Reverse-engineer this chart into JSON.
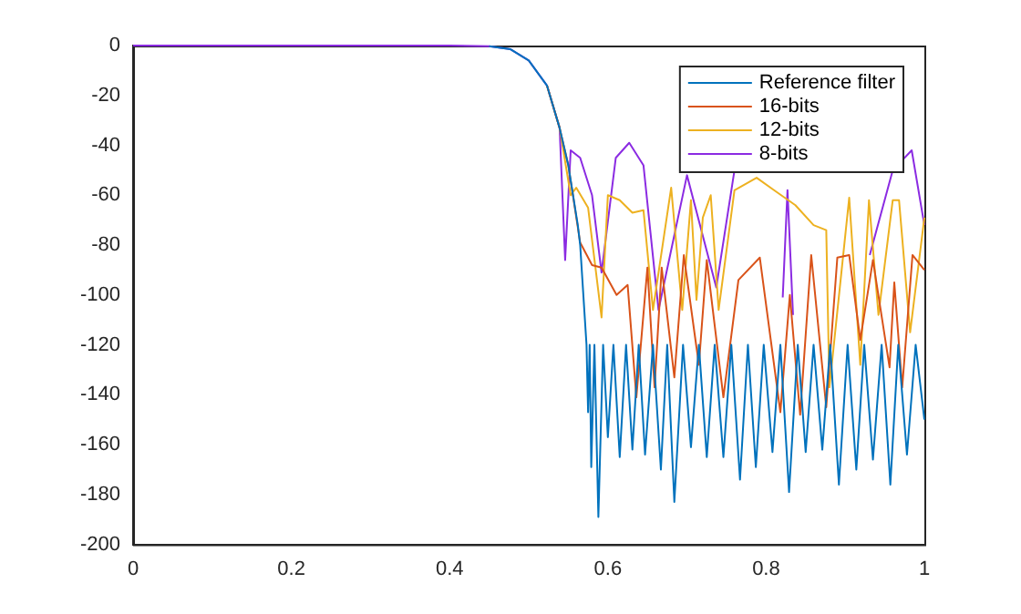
{
  "chart_data": {
    "type": "line",
    "xlim": [
      0,
      1
    ],
    "ylim": [
      -200,
      0
    ],
    "xticks": [
      0,
      0.2,
      0.4,
      0.6,
      0.8,
      1
    ],
    "yticks": [
      -200,
      -180,
      -160,
      -140,
      -120,
      -100,
      -80,
      -60,
      -40,
      -20,
      0
    ],
    "grid": false,
    "legend": "top right",
    "marker": "none",
    "line_style": "solid",
    "series": [
      {
        "name": "Reference filter",
        "color": "#0072bd",
        "x": [
          0.45,
          0.477,
          0.5,
          0.523,
          0.539,
          0.55,
          0.562,
          0.565,
          0.571,
          0.573,
          0.575,
          0.577,
          0.579,
          0.583,
          0.588,
          0.594,
          0.6,
          0.607,
          0.615,
          0.623,
          0.631,
          0.639,
          0.647,
          0.657,
          0.667,
          0.675,
          0.684,
          0.695,
          0.705,
          0.715,
          0.725,
          0.735,
          0.746,
          0.756,
          0.767,
          0.777,
          0.787,
          0.797,
          0.808,
          0.818,
          0.829,
          0.84,
          0.85,
          0.86,
          0.871,
          0.881,
          0.892,
          0.903,
          0.914,
          0.924,
          0.935,
          0.946,
          0.957,
          0.967,
          0.978,
          0.989,
          1
        ],
        "values": [
          -0.3,
          -1.5,
          -6,
          -16,
          -33,
          -48,
          -72,
          -80,
          -110,
          -120,
          -147,
          -120,
          -169,
          -120,
          -189,
          -120,
          -157,
          -120,
          -165,
          -120,
          -162,
          -120,
          -164,
          -120,
          -170,
          -120,
          -183,
          -120,
          -161,
          -120,
          -165,
          -120,
          -165,
          -120,
          -174,
          -120,
          -169,
          -120,
          -163,
          -120,
          -179,
          -120,
          -163,
          -120,
          -162,
          -120,
          -176,
          -120,
          -170,
          -120,
          -166,
          -120,
          -176,
          -120,
          -164,
          -120,
          -150
        ]
      },
      {
        "name": "16-bits",
        "color": "#d95319",
        "x": [
          0.523,
          0.539,
          0.55,
          0.565,
          0.58,
          0.592,
          0.611,
          0.625,
          0.636,
          0.65,
          0.659,
          0.668,
          0.684,
          0.696,
          0.715,
          0.725,
          0.746,
          0.765,
          0.792,
          0.818,
          0.83,
          0.843,
          0.857,
          0.876,
          0.89,
          0.905,
          0.919,
          0.935,
          0.956,
          0.962,
          0.972,
          0.985,
          1
        ],
        "values": [
          -16,
          -33,
          -48,
          -79,
          -88,
          -89,
          -100,
          -96,
          -141,
          -89,
          -137,
          -89,
          -133,
          -84,
          -128,
          -86,
          -141,
          -94,
          -85,
          -147,
          -100,
          -148,
          -84,
          -145,
          -85,
          -84,
          -118,
          -86,
          -129,
          -95,
          -137,
          -84,
          -90
        ]
      },
      {
        "name": "12-bits",
        "color": "#edb120",
        "x": [
          0.523,
          0.539,
          0.553,
          0.56,
          0.575,
          0.592,
          0.6,
          0.615,
          0.631,
          0.645,
          0.657,
          0.68,
          0.694,
          0.705,
          0.712,
          0.72,
          0.73,
          0.74,
          0.76,
          0.788,
          0.81,
          0.837,
          0.86,
          0.876,
          0.88,
          0.905,
          0.919,
          0.93,
          0.942,
          0.96,
          0.968,
          0.982,
          1
        ],
        "values": [
          -16,
          -33,
          -60,
          -57,
          -65,
          -109,
          -60,
          -62,
          -67,
          -66,
          -106,
          -57,
          -106,
          -62,
          -102,
          -69,
          -60,
          -106,
          -58,
          -53,
          -58,
          -64,
          -72,
          -74,
          -137,
          -61,
          -128,
          -62,
          -108,
          -62,
          -62,
          -115,
          -69
        ]
      },
      {
        "name": "8-bits",
        "color": "#8b2be2",
        "x": [
          0,
          0.3,
          0.4,
          0.45,
          0.477,
          0.5,
          0.523,
          0.539,
          0.546,
          0.553,
          0.565,
          0.58,
          0.592,
          0.61,
          0.627,
          0.645,
          0.664,
          0.7,
          0.737,
          0.76,
          0.79,
          0.805,
          0.821,
          0.827,
          0.834,
          0.86,
          0.9,
          0.931,
          0.96,
          0.984,
          1
        ],
        "values": [
          0,
          0,
          0,
          -0.3,
          -1.5,
          -6,
          -16,
          -33,
          -86,
          -42,
          -45,
          -60,
          -91,
          -45,
          -39,
          -48,
          -106,
          -52,
          -97,
          -50,
          null,
          null,
          -101,
          -58,
          -108,
          null,
          null,
          -84,
          -50,
          -42,
          -72
        ]
      }
    ]
  }
}
